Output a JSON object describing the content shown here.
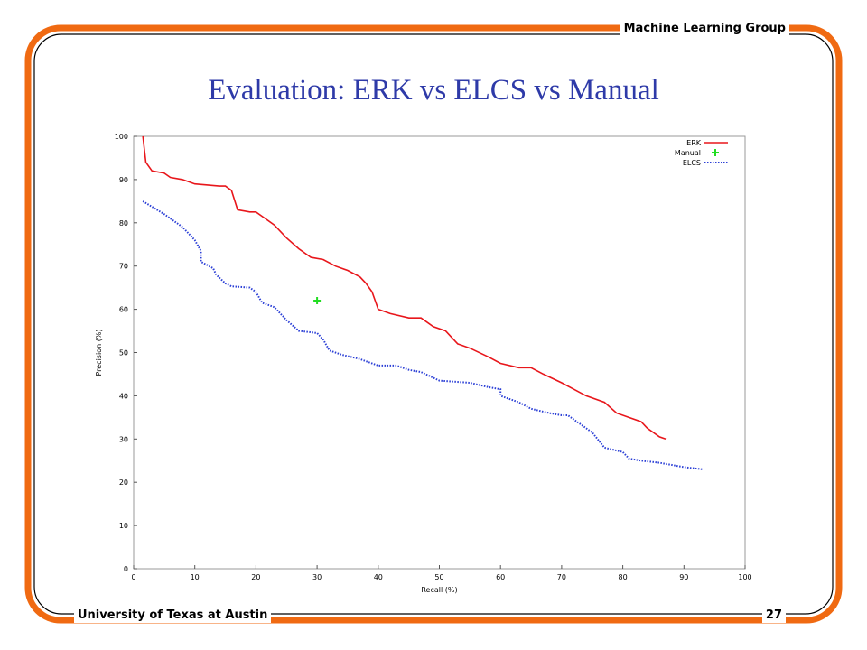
{
  "header": {
    "group": "Machine Learning Group",
    "institution": "University of Texas at Austin",
    "page_number": "27"
  },
  "chart_data": {
    "type": "line",
    "title": "Evaluation: ERK vs ELCS vs Manual",
    "x_label": "Recall (%)",
    "y_label": "Precision (%)",
    "xlim": [
      0,
      100
    ],
    "ylim": [
      0,
      100
    ],
    "xticks": [
      0,
      10,
      20,
      30,
      40,
      50,
      60,
      70,
      80,
      90,
      100
    ],
    "yticks": [
      0,
      10,
      20,
      30,
      40,
      50,
      60,
      70,
      80,
      90,
      100
    ],
    "legend": "upper right",
    "series": [
      {
        "name": "ERK",
        "color": "#e8161b",
        "style": "solid",
        "x": [
          1.5,
          2,
          3,
          5,
          6,
          8,
          10,
          14,
          15,
          16,
          17,
          19,
          20,
          21,
          23,
          25,
          27,
          29,
          31,
          33,
          35,
          37,
          38,
          39,
          40,
          42,
          45,
          47,
          49,
          51,
          53,
          55,
          58,
          60,
          63,
          65,
          67,
          70,
          72,
          74,
          77,
          79,
          81,
          83,
          84,
          86,
          87
        ],
        "values": [
          100,
          94,
          92,
          91.5,
          90.5,
          90,
          89,
          88.5,
          88.5,
          87.5,
          83,
          82.5,
          82.5,
          81.5,
          79.5,
          76.5,
          74,
          72,
          71.5,
          70,
          69,
          67.5,
          66,
          64,
          60,
          59,
          58,
          58,
          56,
          55,
          52,
          51,
          49,
          47.5,
          46.5,
          46.5,
          45,
          43,
          41.5,
          40,
          38.5,
          36,
          35,
          34,
          32.5,
          30.5,
          30
        ]
      },
      {
        "name": "Manual",
        "color": "#22dd22",
        "style": "point",
        "x": [
          30
        ],
        "values": [
          62
        ]
      },
      {
        "name": "ELCS",
        "color": "#2b3fd6",
        "style": "dotted",
        "x": [
          1.5,
          5,
          8,
          10,
          11,
          11,
          13,
          13.5,
          15,
          16,
          19,
          20,
          21,
          23,
          25,
          27,
          30,
          31,
          32,
          34,
          37,
          40,
          43,
          45,
          47,
          50,
          55,
          58,
          60,
          60,
          63,
          65,
          68,
          70,
          71,
          73,
          75,
          77,
          80,
          81,
          83,
          86,
          90,
          93
        ],
        "values": [
          85,
          82,
          79,
          76,
          73.5,
          71,
          69.5,
          68,
          66,
          65.3,
          65,
          64,
          61.5,
          60.5,
          57.5,
          55,
          54.5,
          53,
          50.5,
          49.5,
          48.5,
          47,
          47,
          46,
          45.5,
          43.5,
          43,
          42,
          41.5,
          40,
          38.5,
          37,
          36,
          35.5,
          35.5,
          33.5,
          31.5,
          28,
          27,
          25.5,
          25,
          24.5,
          23.5,
          23
        ]
      }
    ]
  }
}
